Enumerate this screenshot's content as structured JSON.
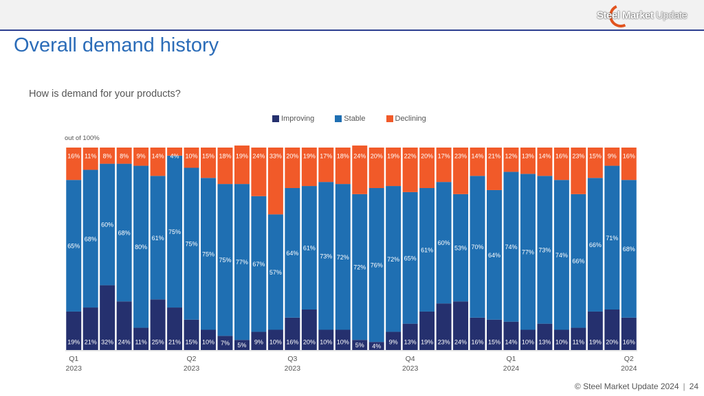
{
  "header": {
    "logo_text_bold": "Steel Market",
    "logo_text_light": "Update"
  },
  "page": {
    "title": "Overall demand history",
    "question": "How is demand for your products?",
    "out_of_label": "out of 100%"
  },
  "colors": {
    "improving": "#25306e",
    "stable": "#1f6fb2",
    "declining": "#f15a29",
    "title": "#2b6cb8",
    "header_rule": "#2b3d8f"
  },
  "chart_data": {
    "type": "bar",
    "stacked": true,
    "ylim": [
      0,
      100
    ],
    "grid": false,
    "legend_position": "top-center",
    "series": [
      {
        "name": "Improving",
        "values": [
          19,
          21,
          32,
          24,
          11,
          25,
          21,
          15,
          10,
          7,
          5,
          9,
          10,
          16,
          20,
          10,
          10,
          5,
          4,
          9,
          13,
          19,
          23,
          24,
          16,
          15,
          14,
          10,
          13,
          10,
          11,
          19,
          20,
          16
        ]
      },
      {
        "name": "Stable",
        "values": [
          65,
          68,
          60,
          68,
          80,
          61,
          75,
          75,
          75,
          75,
          77,
          67,
          57,
          64,
          61,
          73,
          72,
          72,
          76,
          72,
          65,
          61,
          60,
          53,
          70,
          64,
          74,
          77,
          73,
          74,
          66,
          66,
          71,
          68
        ]
      },
      {
        "name": "Declining",
        "values": [
          16,
          11,
          8,
          8,
          9,
          14,
          4,
          10,
          15,
          18,
          19,
          24,
          33,
          20,
          19,
          17,
          18,
          24,
          20,
          19,
          22,
          20,
          17,
          23,
          14,
          21,
          12,
          13,
          14,
          16,
          23,
          15,
          9,
          16
        ]
      }
    ],
    "x_ticks": [
      {
        "index": 0,
        "quarter": "Q1",
        "year": "2023"
      },
      {
        "index": 7,
        "quarter": "Q2",
        "year": "2023"
      },
      {
        "index": 13,
        "quarter": "Q3",
        "year": "2023"
      },
      {
        "index": 20,
        "quarter": "Q4",
        "year": "2023"
      },
      {
        "index": 26,
        "quarter": "Q1",
        "year": "2024"
      },
      {
        "index": 33,
        "quarter": "Q2",
        "year": "2024"
      }
    ]
  },
  "footer": {
    "copyright": "© Steel Market Update 2024",
    "page_number": "24"
  }
}
